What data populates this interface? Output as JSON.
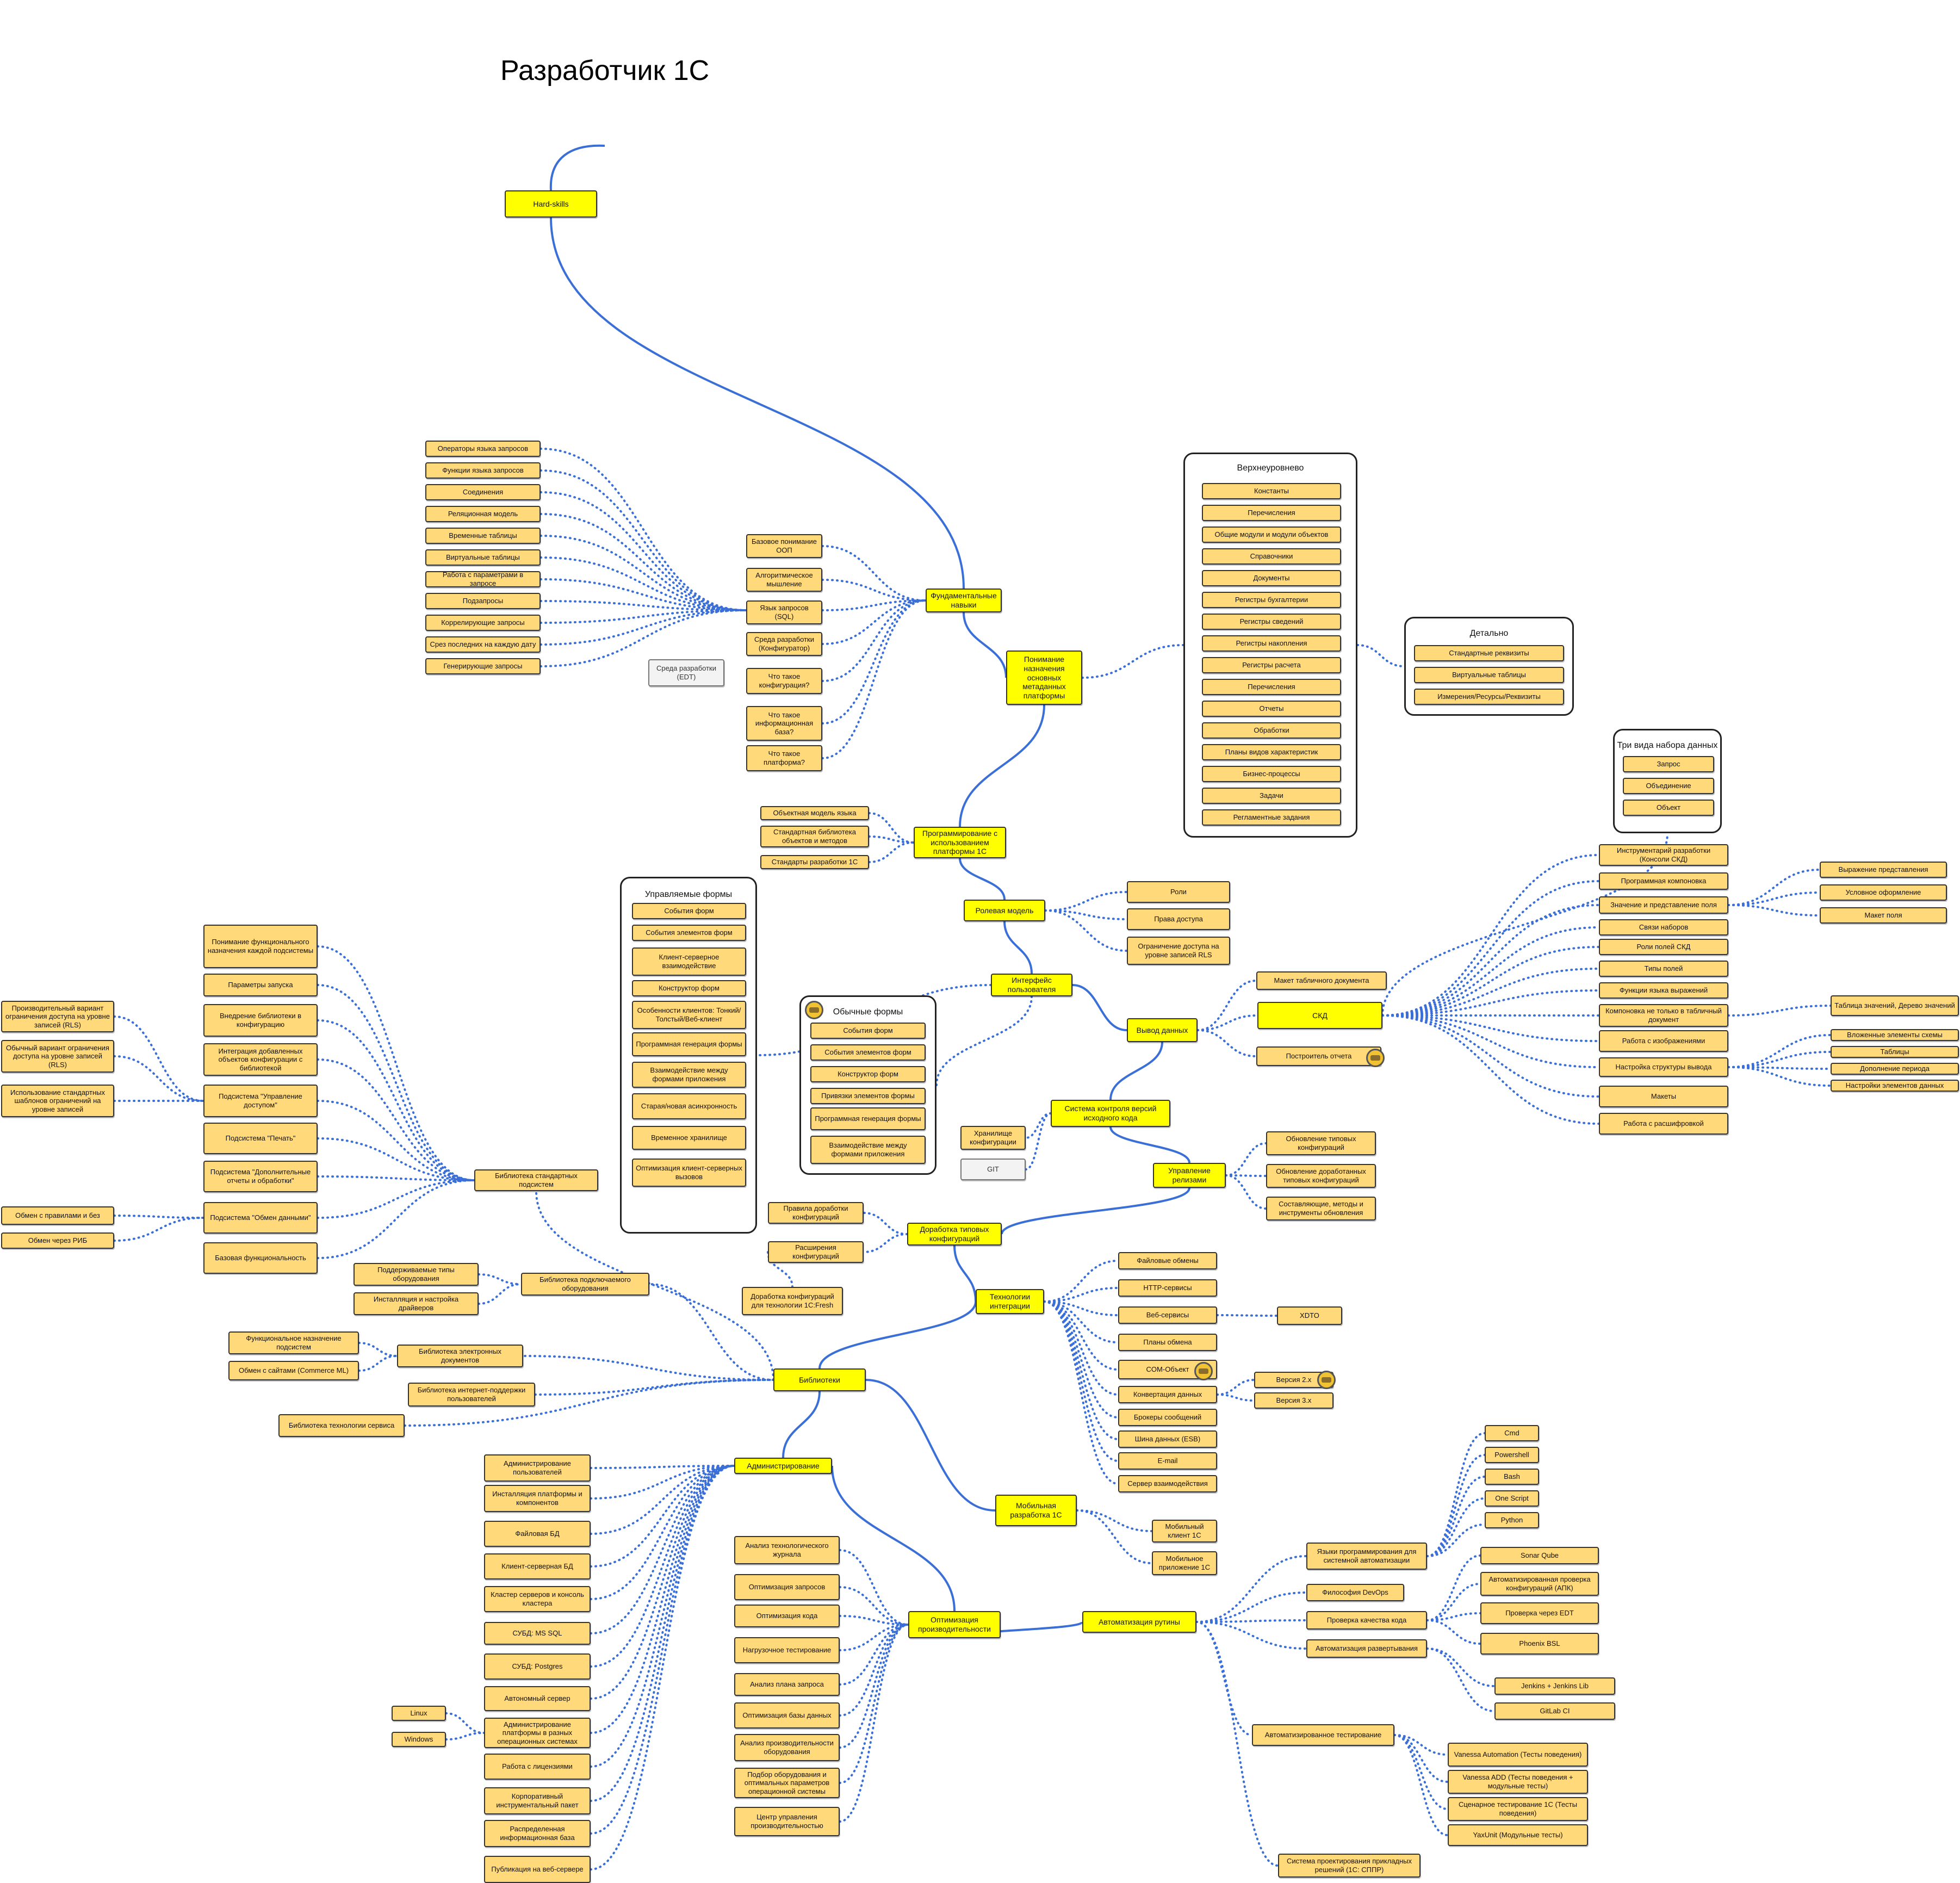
{
  "title": "Разработчик 1С",
  "colors": {
    "main_line": "#3b6fd8",
    "dotted_line": "#3b6fd8",
    "key_node": "#ffff00",
    "node": "#ffd97a"
  },
  "key_nodes": {
    "hardskills": "Hard-skills",
    "fund": "Фундаментальные навыки",
    "metadata": "Понимание назначения основных метаданных платформы",
    "programming": "Программирование с использованием платформы 1С",
    "roles": "Ролевая модель",
    "ui": "Интерфейс пользователя",
    "output": "Вывод данных",
    "skd": "СКД",
    "vcs": "Система контроля версий исходного кода",
    "release": "Управление релизами",
    "typical": "Доработка типовых конфигураций",
    "integration": "Технологии интеграции",
    "libraries": "Библиотеки",
    "mobile": "Мобильная разработка 1С",
    "admin": "Администрирование",
    "perf": "Оптимизация производительности",
    "automation": "Автоматизация рутины"
  },
  "fund_items": [
    "Базовое понимание ООП",
    "Алгоритмическое мышление",
    "Язык запросов (SQL)",
    "Среда разработки (Конфигуратор)",
    "Что такое конфигурация?",
    "Что такое информационная база?",
    "Что такое платформа?"
  ],
  "edt": "Среда разработки (EDT)",
  "sql_items": [
    "Операторы языка запросов",
    "Функции языка запросов",
    "Соединения",
    "Реляционная модель",
    "Временные таблицы",
    "Виртуальные таблицы",
    "Работа с параметрами в запросе",
    "Подзапросы",
    "Коррелирующие запросы",
    "Срез последних на каждую дату",
    "Генерирующие запросы"
  ],
  "top_group": {
    "title": "Верхнеуровнево",
    "items": [
      "Константы",
      "Перечисления",
      "Общие модули и модули объектов",
      "Справочники",
      "Документы",
      "Регистры бухгалтерии",
      "Регистры сведений",
      "Регистры накопления",
      "Регистры расчета",
      "Перечисления",
      "Отчеты",
      "Обработки",
      "Планы видов характеристик",
      "Бизнес-процессы",
      "Задачи",
      "Регламентные задания"
    ]
  },
  "detail_group": {
    "title": "Детально",
    "items": [
      "Стандартные реквизиты",
      "Виртуальные таблицы",
      "Измерения/Ресурсы/Реквизиты"
    ]
  },
  "prog_items": [
    "Объектная модель языка",
    "Стандартная библиотека объектов и методов",
    "Стандарты разработки 1С"
  ],
  "role_items": [
    "Роли",
    "Права доступа",
    "Ограничение доступа на уровне записей RLS"
  ],
  "managed_forms": {
    "title": "Управляемые формы",
    "items": [
      "События форм",
      "События элементов форм",
      "Клиент-серверное взаимодействие",
      "Конструктор форм",
      "Особенности клиентов: Тонкий/Толстый/Веб-клиент",
      "Программная генерация формы",
      "Взаимодействие между формами приложения",
      "Старая/новая асинхронность",
      "Временное хранилище",
      "Оптимизация клиент-серверных вызовов"
    ]
  },
  "ordinary_forms": {
    "title": "Обычные формы",
    "items": [
      "События форм",
      "События элементов форм",
      "Конструктор форм",
      "Привязки элементов формы",
      "Программная генерация формы",
      "Взаимодействие между формами приложения"
    ]
  },
  "output_items": [
    "Макет табличного документа",
    "Построитель отчета"
  ],
  "datasets": {
    "title": "Три вида набора данных",
    "items": [
      "Запрос",
      "Объединение",
      "Объект"
    ]
  },
  "skd_items": [
    "Инструментарий разработки (Консоли СКД)",
    "Программная компоновка",
    "Значение и представление поля",
    "Связи наборов",
    "Роли полей СКД",
    "Типы полей",
    "Функции языка выражений",
    "Компоновка не только в табличный документ",
    "Работа с изображениями",
    "Настройка структуры вывода",
    "Макеты",
    "Работа с расшифровкой"
  ],
  "field_items": [
    "Выражение представления",
    "Условное оформление",
    "Макет поля"
  ],
  "compose_items": [
    "Таблица значений, Дерево значений"
  ],
  "structure_items": [
    "Вложенные элементы схемы",
    "Таблицы",
    "Дополнение периода",
    "Настройки элементов данных"
  ],
  "vcs_items": [
    "Хранилище конфигурации",
    "GIT"
  ],
  "release_items": [
    "Обновление типовых конфигураций",
    "Обновление доработанных типовых конфигураций",
    "Составляющие, методы и инструменты обновления"
  ],
  "typical_items": [
    "Правила доработки конфигураций",
    "Расширения конфигураций",
    "Доработка конфигураций для технологии 1С:Fresh"
  ],
  "integration_items": [
    "Файловые обмены",
    "HTTP-сервисы",
    "Веб-сервисы",
    "Планы обмена",
    "COM-Объект",
    "Конвертация данных",
    "Брокеры сообщений",
    "Шина данных (ESB)",
    "E-mail",
    "Сервер взаимодействия"
  ],
  "xdto": "XDTO",
  "conv_items": [
    "Версия 2.x",
    "Версия 3.x"
  ],
  "bsp": {
    "label": "Библиотека стандартных подсистем",
    "items": [
      "Понимание функционального назначения каждой подсистемы",
      "Параметры запуска",
      "Внедрение библиотеки в конфигурацию",
      "Интеграция добавленных объектов конфигурации с библиотекой",
      "Подсистема \"Управление доступом\"",
      "Подсистема \"Печать\"",
      "Подсистема \"Дополнительные отчеты и обработки\"",
      "Подсистема \"Обмен данными\"",
      "Базовая функциональность"
    ],
    "access_items": [
      "Производительный вариант ограничения доступа на уровне записей (RLS)",
      "Обычный вариант ограничения доступа на уровне записей (RLS)",
      "Использование стандартных шаблонов ограничений на уровне записей"
    ],
    "exchange_items": [
      "Обмен с правилами и без",
      "Обмен через РИБ"
    ]
  },
  "equip": {
    "label": "Библиотека подключаемого оборудования",
    "items": [
      "Поддерживаемые типы оборудования",
      "Инсталляция и настройка драйверов"
    ]
  },
  "edoc": {
    "label": "Библиотека электронных документов",
    "items": [
      "Функциональное назначение подсистем",
      "Обмен с сайтами (Commerce ML)"
    ]
  },
  "other_libs": [
    "Библиотека интернет-поддержки пользователей",
    "Библиотека технологии сервиса"
  ],
  "mobile_items": [
    "Мобильный клиент 1С",
    "Мобильное приложение 1С"
  ],
  "admin_items": [
    "Администрирование пользователей",
    "Инсталляция платформы и компонентов",
    "Файловая БД",
    "Клиент-серверная БД",
    "Кластер серверов и консоль кластера",
    "СУБД: MS SQL",
    "СУБД: Postgres",
    "Автономный сервер",
    "Администрирование платформы в разных операционных системах",
    "Работа с лицензиями",
    "Корпоративный инструментальный пакет",
    "Распределенная информационная база",
    "Публикация на веб-сервере"
  ],
  "os_items": [
    "Linux",
    "Windows"
  ],
  "perf_items": [
    "Анализ технологического журнала",
    "Оптимизация запросов",
    "Оптимизация кода",
    "Нагрузочное тестирование",
    "Анализ плана запроса",
    "Оптимизация базы данных",
    "Анализ производительности оборудования",
    "Подбор оборудования и оптимальных параметров операционной системы",
    "Центр управления производительностью"
  ],
  "auto_items": [
    "Языки программирования для системной автоматизации",
    "Философия DevOps",
    "Проверка качества кода",
    "Автоматизация развертывания",
    "Автоматизированное тестирование",
    "Система проектирования прикладных решений (1С: СППР)"
  ],
  "lang_items": [
    "Cmd",
    "Powershell",
    "Bash",
    "One Script",
    "Python"
  ],
  "quality_items": [
    "Sonar Qube",
    "Автоматизированная проверка конфигураций (АПК)",
    "Проверка через EDT",
    "Phoenix BSL"
  ],
  "deploy_items": [
    "Jenkins + Jenkins Lib",
    "GitLab CI"
  ],
  "test_items": [
    "Vanessa Automation (Тесты поведения)",
    "Vanessa ADD (Тесты поведения + модульные тесты)",
    "Сценарное тестирование 1С (Тесты поведения)",
    "YaxUnit (Модульные тесты)"
  ]
}
